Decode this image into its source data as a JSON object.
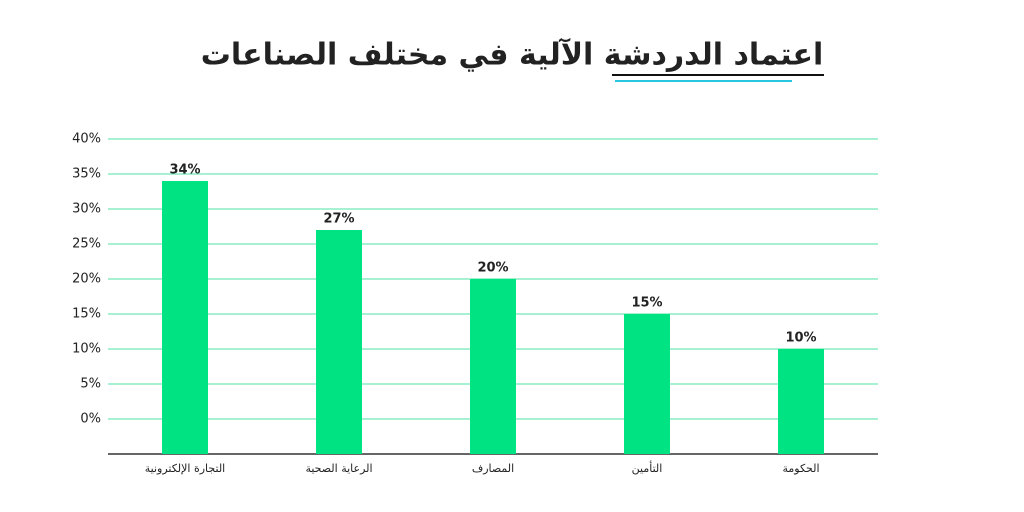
{
  "chart_data": {
    "type": "bar",
    "title": "اعتماد الدردشة الآلية في مختلف الصناعات",
    "categories": [
      "التجارة الإلكترونية",
      "الرعاية الصحية",
      "المصارف",
      "التأمين",
      "الحكومة"
    ],
    "values": [
      34,
      27,
      20,
      15,
      10
    ],
    "value_labels": [
      "34%",
      "27%",
      "20%",
      "15%",
      "10%"
    ],
    "color": "#00e383",
    "ylim": [
      -5,
      40
    ],
    "yticks": [
      {
        "value": 0,
        "label": "0%"
      },
      {
        "value": 5,
        "label": "5%"
      },
      {
        "value": 10,
        "label": "10%"
      },
      {
        "value": 15,
        "label": "15%"
      },
      {
        "value": 20,
        "label": "20%"
      },
      {
        "value": 25,
        "label": "25%"
      },
      {
        "value": 30,
        "label": "30%"
      },
      {
        "value": 35,
        "label": "35%"
      },
      {
        "value": 40,
        "label": "40%"
      }
    ],
    "grid": true
  }
}
